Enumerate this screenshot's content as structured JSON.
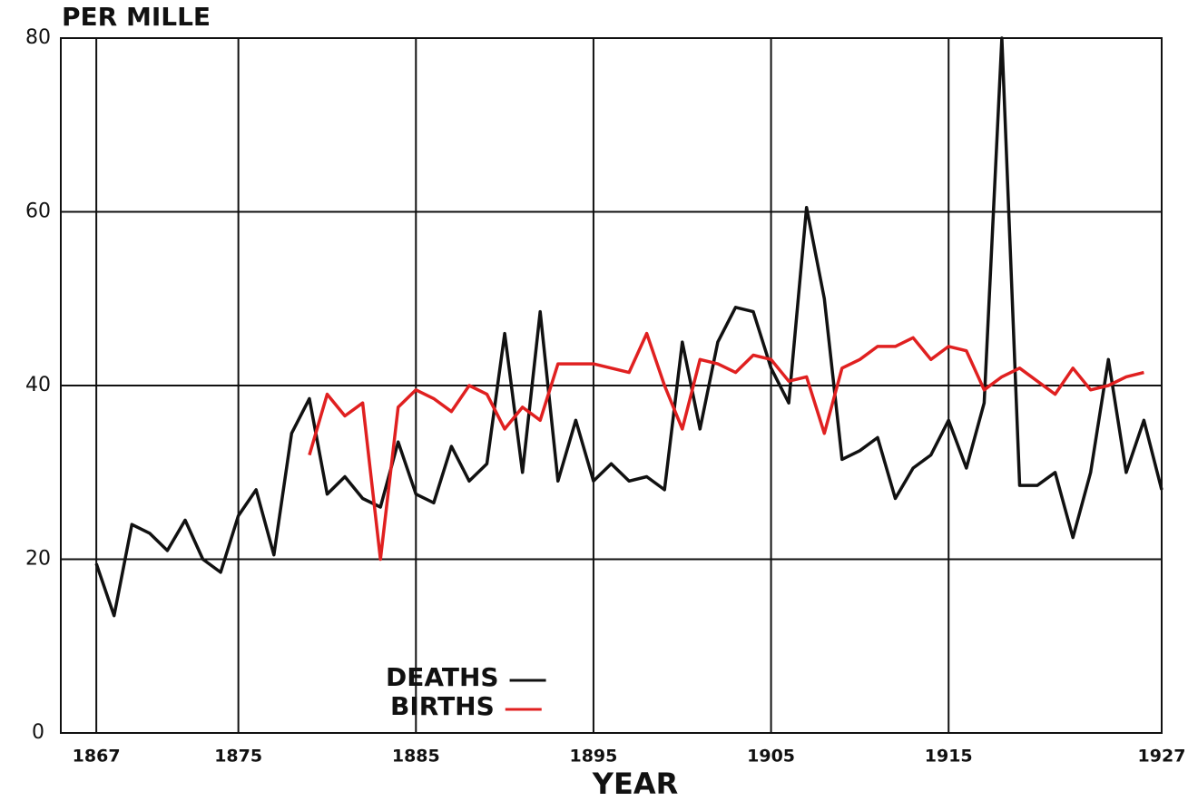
{
  "chart_data": {
    "type": "line",
    "y_label": "PER MILLE",
    "x_label": "YEAR",
    "xlim": [
      1865,
      1927
    ],
    "ylim": [
      0,
      80
    ],
    "xticks": [
      1867,
      1875,
      1885,
      1895,
      1905,
      1915,
      1927
    ],
    "yticks": [
      0,
      20,
      40,
      60,
      80
    ],
    "grid": true,
    "x": [
      1867,
      1868,
      1869,
      1870,
      1871,
      1872,
      1873,
      1874,
      1875,
      1876,
      1877,
      1878,
      1879,
      1880,
      1881,
      1882,
      1883,
      1884,
      1885,
      1886,
      1887,
      1888,
      1889,
      1890,
      1891,
      1892,
      1893,
      1894,
      1895,
      1896,
      1897,
      1898,
      1899,
      1900,
      1901,
      1902,
      1903,
      1904,
      1905,
      1906,
      1907,
      1908,
      1909,
      1910,
      1911,
      1912,
      1913,
      1914,
      1915,
      1916,
      1917,
      1918,
      1919,
      1920,
      1921,
      1922,
      1923,
      1924,
      1925,
      1926,
      1927
    ],
    "series": [
      {
        "name": "DEATHS",
        "color": "#111111",
        "values": [
          19.5,
          13.5,
          24,
          23,
          21,
          24.5,
          20,
          18.5,
          25,
          28,
          20.5,
          34.5,
          38.5,
          27.5,
          29.5,
          27,
          26,
          33.5,
          27.5,
          26.5,
          33,
          29,
          31,
          46,
          30,
          48.5,
          29,
          36,
          29,
          31,
          29,
          29.5,
          28,
          45,
          35,
          45,
          49,
          48.5,
          42,
          38,
          60.5,
          50,
          31.5,
          32.5,
          34,
          27,
          30.5,
          32,
          36,
          30.5,
          38,
          80,
          28.5,
          28.5,
          30,
          22.5,
          30,
          43,
          30,
          36,
          28
        ]
      },
      {
        "name": "BIRTHS",
        "color": "#e02020",
        "values": [
          null,
          null,
          null,
          null,
          null,
          null,
          null,
          null,
          null,
          null,
          null,
          null,
          32,
          39,
          36.5,
          38,
          20,
          37.5,
          39.5,
          38.5,
          37,
          40,
          39,
          35,
          37.5,
          36,
          42.5,
          42.5,
          42.5,
          42,
          41.5,
          46,
          40,
          35,
          43,
          42.5,
          41.5,
          43.5,
          43,
          40.5,
          41,
          34.5,
          42,
          43,
          44.5,
          44.5,
          45.5,
          43,
          44.5,
          44,
          39.5,
          41,
          42,
          40.5,
          39,
          42,
          39.5,
          40,
          41,
          41.5,
          null
        ]
      }
    ]
  }
}
